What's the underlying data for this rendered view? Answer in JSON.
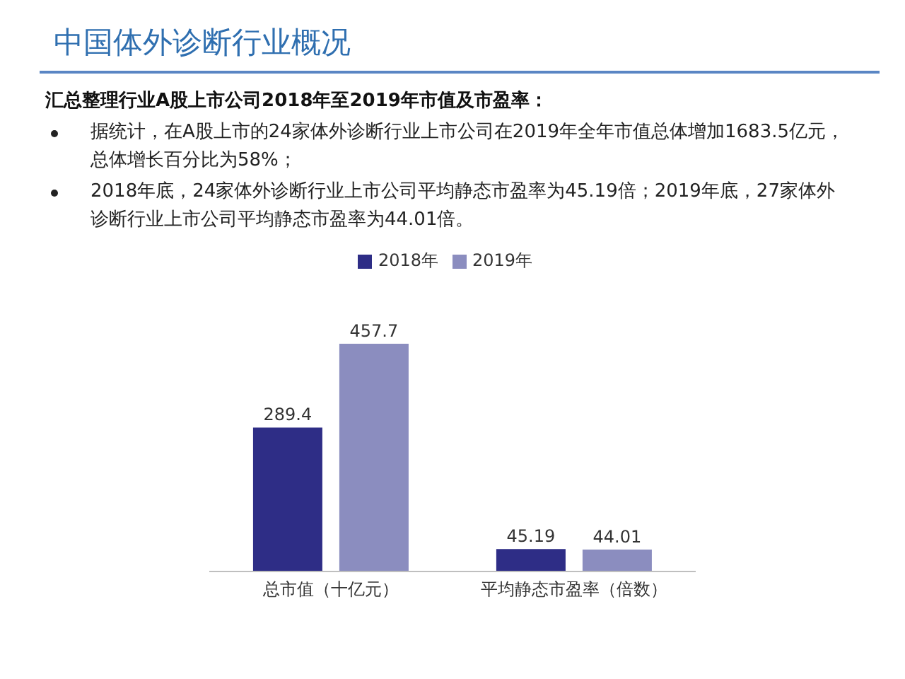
{
  "chart_data": {
    "type": "bar",
    "title": "中国体外诊断行业概况",
    "subtitle": "汇总整理行业A股上市公司2018年至2019年市值及市盈率：",
    "annotations": [
      "据统计，在A股上市的24家体外诊断行业上市公司在2019年全年市值总体增加1683.5亿元，总体增长百分比为58%；",
      "2018年底，24家体外诊断行业上市公司平均静态市盈率为45.19倍；2019年底，27家体外诊断行业上市公司平均静态市盈率为44.01倍。"
    ],
    "categories": [
      "总市值（十亿元）",
      "平均静态市盈率（倍数）"
    ],
    "series": [
      {
        "name": "2018年",
        "color": "#2e2d86",
        "values": [
          289.4,
          45.19
        ]
      },
      {
        "name": "2019年",
        "color": "#8b8dbf",
        "values": [
          457.7,
          44.01
        ]
      }
    ],
    "data_labels": true,
    "legend": "top"
  }
}
